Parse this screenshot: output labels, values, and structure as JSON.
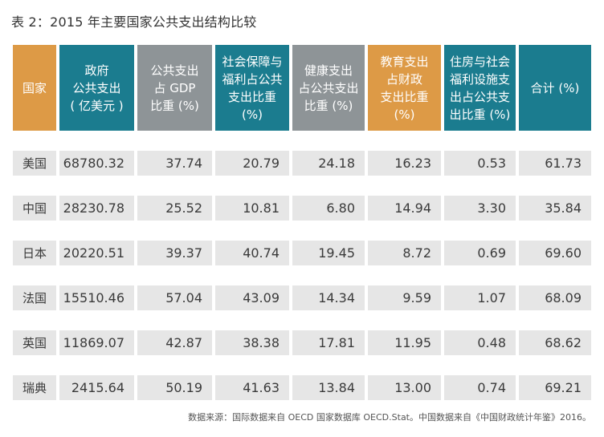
{
  "title": "表 2：2015 年主要国家公共支出结构比较",
  "headers": [
    {
      "label": "国家",
      "color": "#dd9a46"
    },
    {
      "label": "政府\n公共支出\n( 亿美元 )",
      "color": "#1b7c8f"
    },
    {
      "label": "公共支出\n占 GDP\n比重 (%)",
      "color": "#8e9497"
    },
    {
      "label": "社会保障与\n福利占公共\n支出比重\n(%)",
      "color": "#1b7c8f"
    },
    {
      "label": "健康支出\n占公共支出\n比重 (%)",
      "color": "#8e9497"
    },
    {
      "label": "教育支出\n占财政\n支出比重\n(%)",
      "color": "#dd9a46"
    },
    {
      "label": "住房与社会\n福利设施支\n出占公共支\n出比重 (%)",
      "color": "#1b7c8f"
    },
    {
      "label": "合计 (%)",
      "color": "#1b7c8f"
    }
  ],
  "rows": [
    [
      "美国",
      "68780.32",
      "37.74",
      "20.79",
      "24.18",
      "16.23",
      "0.53",
      "61.73"
    ],
    [
      "中国",
      "28230.78",
      "25.52",
      "10.81",
      "6.80",
      "14.94",
      "3.30",
      "35.84"
    ],
    [
      "日本",
      "20220.51",
      "39.37",
      "40.74",
      "19.45",
      "8.72",
      "0.69",
      "69.60"
    ],
    [
      "法国",
      "15510.46",
      "57.04",
      "43.09",
      "14.34",
      "9.59",
      "1.07",
      "68.09"
    ],
    [
      "英国",
      "11869.07",
      "42.87",
      "38.38",
      "17.81",
      "11.95",
      "0.48",
      "68.62"
    ],
    [
      "瑞典",
      "2415.64",
      "50.19",
      "41.63",
      "13.84",
      "13.00",
      "0.74",
      "69.21"
    ]
  ],
  "source": "数据来源：国际数据来自 OECD 国家数据库 OECD.Stat。中国数据来自《中国财政统计年鉴》2016。"
}
